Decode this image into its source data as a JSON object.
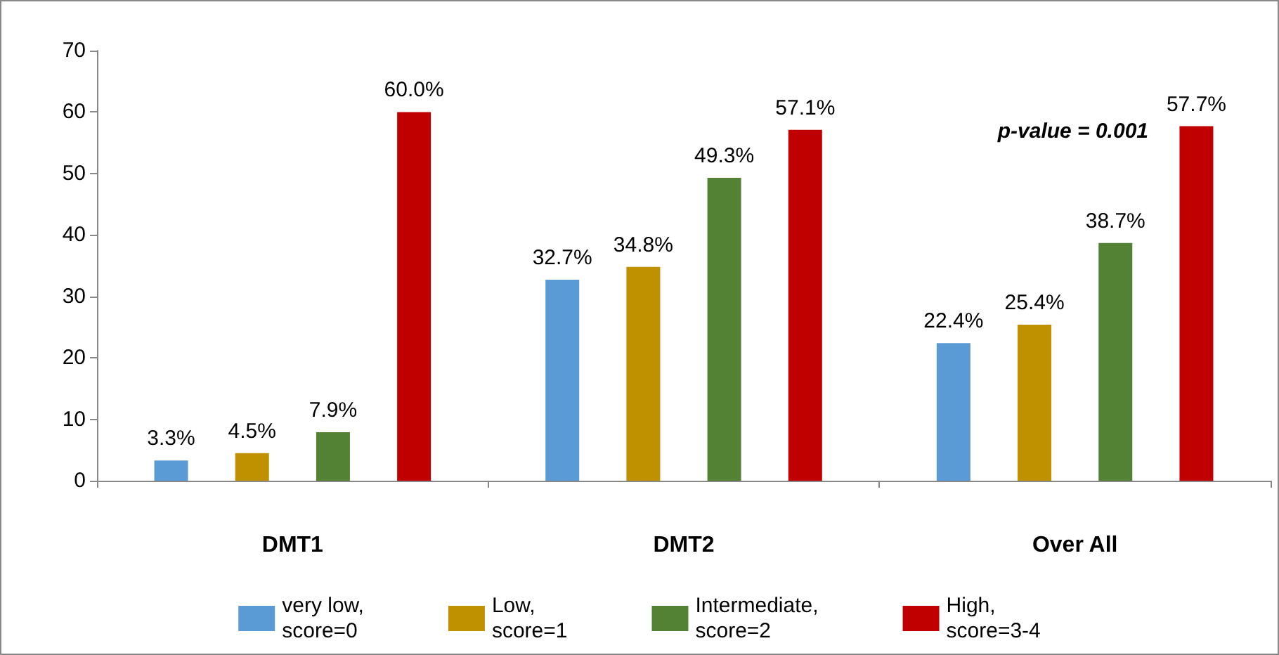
{
  "chart_data": {
    "type": "bar",
    "categories": [
      "DMT1",
      "DMT2",
      "Over All"
    ],
    "series": [
      {
        "name": "very low, score=0",
        "color": "#5b9bd5",
        "values": [
          3.3,
          32.7,
          22.4
        ],
        "value_labels": [
          "3.3%",
          "32.7%",
          "22.4%"
        ]
      },
      {
        "name": "Low, score=1",
        "color": "#bf9000",
        "values": [
          4.5,
          34.8,
          25.4
        ],
        "value_labels": [
          "4.5%",
          "34.8%",
          "25.4%"
        ]
      },
      {
        "name": "Intermediate, score=2",
        "color": "#548235",
        "values": [
          7.9,
          49.3,
          38.7
        ],
        "value_labels": [
          "7.9%",
          "49.3%",
          "38.7%"
        ]
      },
      {
        "name": "High, score=3-4",
        "color": "#c00000",
        "values": [
          60.0,
          57.1,
          57.7
        ],
        "value_labels": [
          "60.0%",
          "57.1%",
          "57.7%"
        ]
      }
    ],
    "ylim": [
      0,
      70
    ],
    "yticks": [
      0,
      10,
      20,
      30,
      40,
      50,
      60,
      70
    ],
    "grid": false,
    "legend": "bottom",
    "annotations": [
      "p-value = 0.001"
    ]
  }
}
